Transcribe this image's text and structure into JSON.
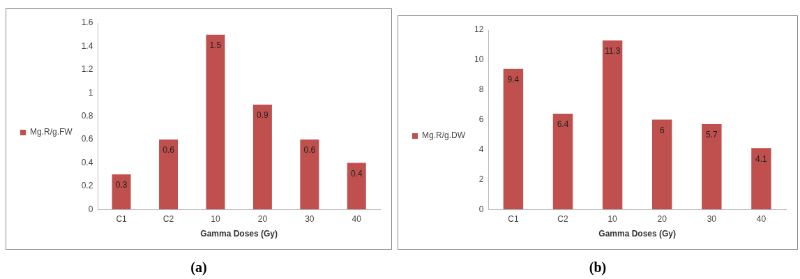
{
  "chart_data": [
    {
      "type": "bar",
      "categories": [
        "C1",
        "C2",
        "10",
        "20",
        "30",
        "40"
      ],
      "xlabel": "Gamma Doses (Gy)",
      "series": [
        {
          "name": "Mg.R/g.FW",
          "color": "#c0504d",
          "values": [
            0.3,
            0.6,
            1.5,
            0.9,
            0.6,
            0.4
          ]
        }
      ],
      "ylim": [
        0,
        1.6
      ],
      "yticks": [
        0,
        0.2,
        0.4,
        0.6,
        0.8,
        1,
        1.2,
        1.4,
        1.6
      ],
      "grid": false,
      "legend": "left",
      "data_labels": true,
      "annotations": [
        "(a)"
      ]
    },
    {
      "type": "bar",
      "categories": [
        "C1",
        "C2",
        "10",
        "20",
        "30",
        "40"
      ],
      "xlabel": "Gamma Doses (Gy)",
      "series": [
        {
          "name": "Mg.R/g.DW",
          "color": "#c0504d",
          "values": [
            9.4,
            6.4,
            11.3,
            6,
            5.7,
            4.1
          ]
        }
      ],
      "ylim": [
        0,
        12
      ],
      "yticks": [
        0,
        2,
        4,
        6,
        8,
        10,
        12
      ],
      "grid": false,
      "legend": "left",
      "data_labels": true,
      "annotations": [
        "(b)"
      ]
    }
  ]
}
